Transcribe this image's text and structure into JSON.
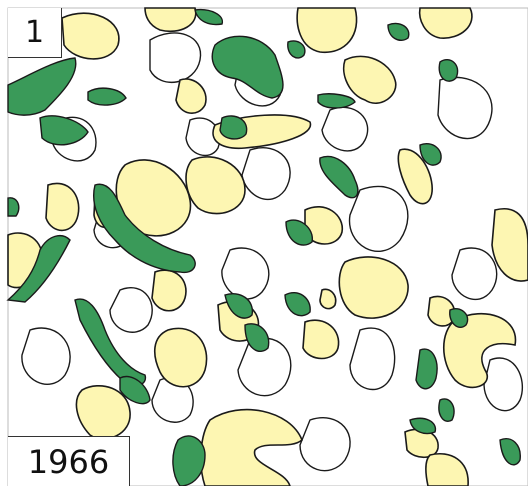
{
  "panel": {
    "number": "1",
    "year": "1966"
  }
}
